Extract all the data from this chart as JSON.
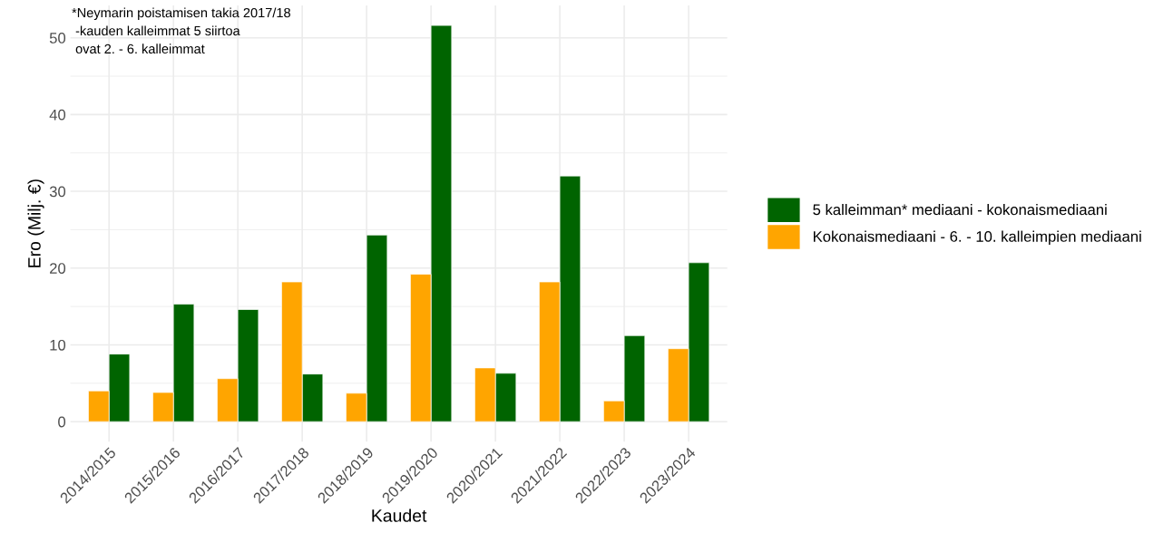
{
  "chart_data": {
    "type": "bar",
    "xlabel": "Kaudet",
    "ylabel": "Ero (Milj. €)",
    "categories": [
      "2014/2015",
      "2015/2016",
      "2016/2017",
      "2017/2018",
      "2018/2019",
      "2019/2020",
      "2020/2021",
      "2021/2022",
      "2022/2023",
      "2023/2024"
    ],
    "series": [
      {
        "name": "5 kalleimman* mediaani - kokonaismediaani",
        "color": "#006400",
        "values": [
          8.8,
          15.3,
          14.6,
          6.2,
          24.3,
          51.6,
          6.3,
          32.0,
          11.2,
          20.7
        ]
      },
      {
        "name": "Kokonaismediaani - 6. - 10. kalleimpien mediaani",
        "color": "#ffa500",
        "values": [
          4.0,
          3.8,
          5.6,
          18.2,
          3.7,
          19.2,
          7.0,
          18.2,
          2.7,
          9.5
        ]
      }
    ],
    "ylim": [
      -2.6,
      54.2
    ],
    "yticks": [
      0,
      10,
      20,
      30,
      40,
      50
    ],
    "grid": true,
    "legend": "right",
    "annotations": [
      "*Neymarin poistamisen takia 2017/18\n -kauden kalleimmat 5 siirtoa\n ovat 2. - 6. kalleimmat"
    ]
  }
}
